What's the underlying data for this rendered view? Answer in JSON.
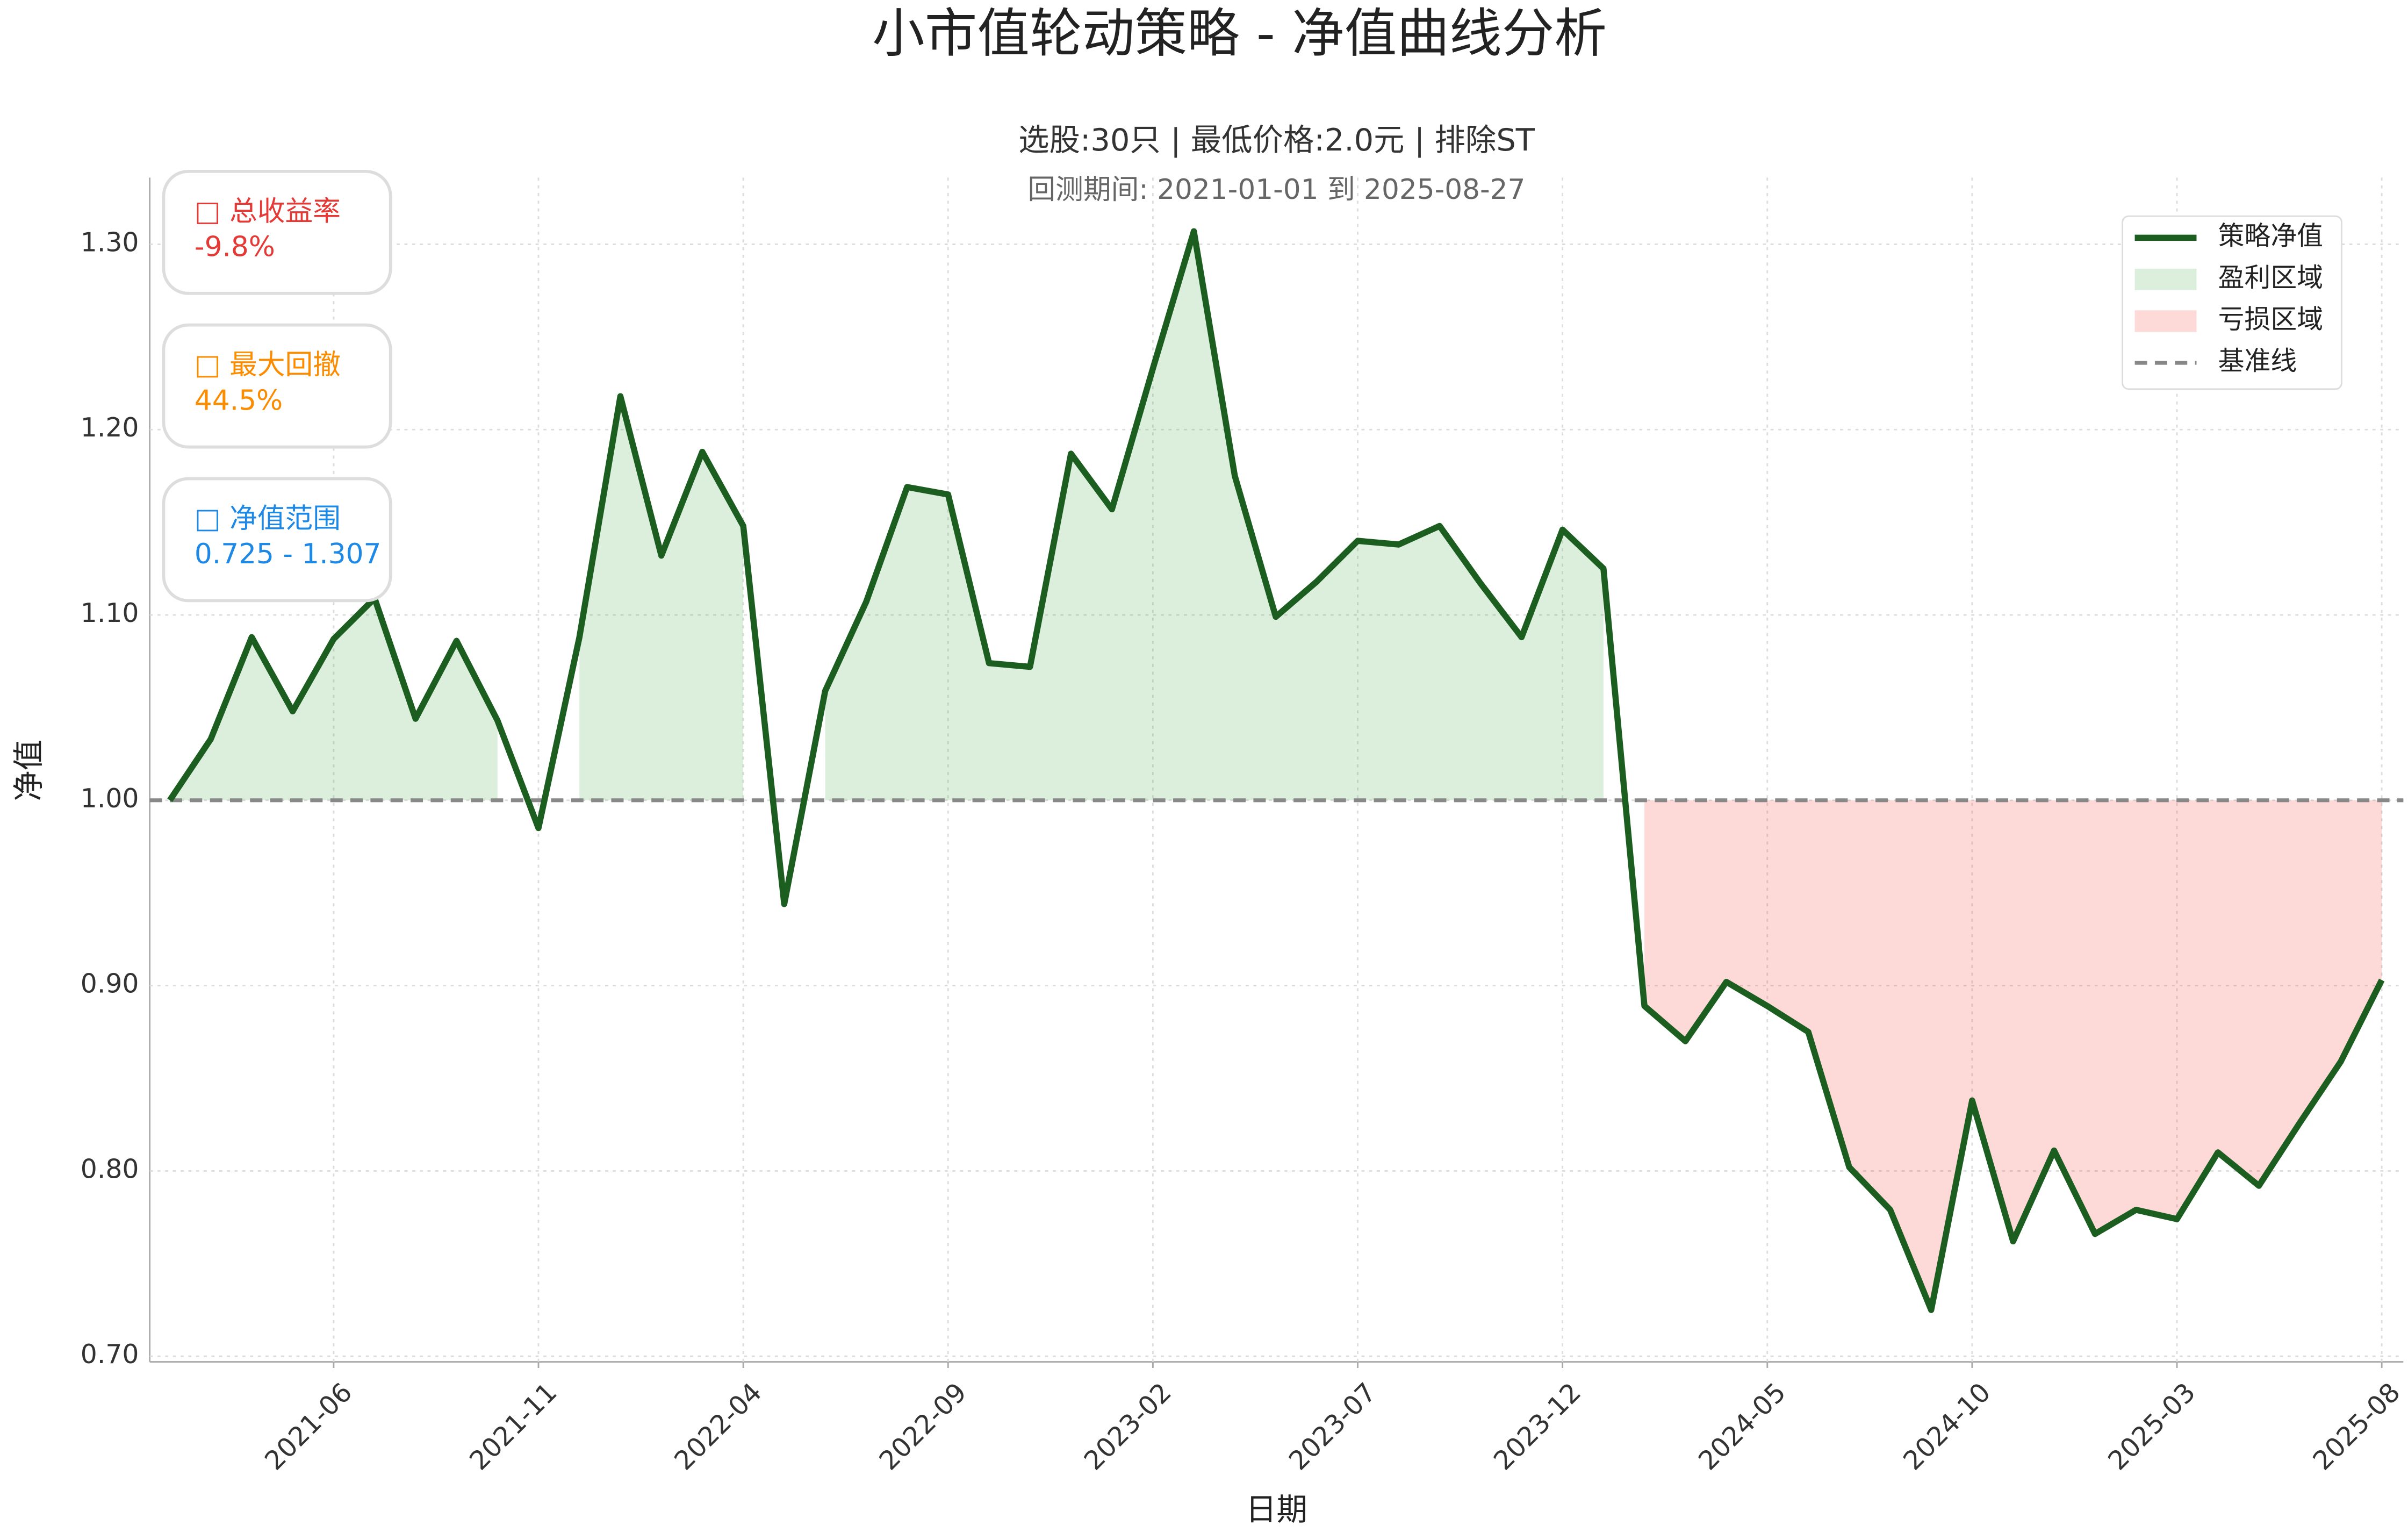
{
  "chart_data": {
    "type": "line",
    "title": "小市值轮动策略 - 净值曲线分析",
    "subtitle": "选股:30只 | 最低价格:2.0元 | 排除ST",
    "period": "回测期间: 2021-01-01 到 2025-08-27",
    "x_label": "日期",
    "y_label": "净值",
    "x": [
      "2021-02",
      "2021-03",
      "2021-04",
      "2021-05",
      "2021-06",
      "2021-07",
      "2021-08",
      "2021-09",
      "2021-10",
      "2021-11",
      "2021-12",
      "2022-01",
      "2022-02",
      "2022-03",
      "2022-04",
      "2022-05",
      "2022-06",
      "2022-07",
      "2022-08",
      "2022-09",
      "2022-10",
      "2022-11",
      "2022-12",
      "2023-01",
      "2023-02",
      "2023-03",
      "2023-04",
      "2023-05",
      "2023-06",
      "2023-07",
      "2023-08",
      "2023-09",
      "2023-10",
      "2023-11",
      "2023-12",
      "2024-01",
      "2024-02",
      "2024-03",
      "2024-04",
      "2024-05",
      "2024-06",
      "2024-07",
      "2024-08",
      "2024-09",
      "2024-10",
      "2024-11",
      "2024-12",
      "2025-01",
      "2025-02",
      "2025-03",
      "2025-04",
      "2025-05",
      "2025-06",
      "2025-07",
      "2025-08"
    ],
    "series": [
      {
        "name": "策略净值",
        "color": "#1b5e20",
        "values": [
          1.0,
          1.033,
          1.088,
          1.048,
          1.087,
          1.109,
          1.044,
          1.086,
          1.043,
          0.985,
          1.088,
          1.218,
          1.132,
          1.188,
          1.148,
          0.944,
          1.059,
          1.107,
          1.169,
          1.165,
          1.074,
          1.072,
          1.187,
          1.157,
          1.233,
          1.307,
          1.175,
          1.099,
          1.118,
          1.14,
          1.138,
          1.148,
          1.117,
          1.088,
          1.146,
          1.125,
          0.889,
          0.87,
          0.902,
          0.889,
          0.875,
          0.802,
          0.779,
          0.725,
          0.838,
          0.762,
          0.811,
          0.766,
          0.779,
          0.774,
          0.81,
          0.792,
          0.826,
          0.859,
          0.903
        ]
      }
    ],
    "profit_fill": {
      "name": "盈利区域",
      "color": "#4caf50"
    },
    "loss_fill": {
      "name": "亏损区域",
      "color": "#f44336"
    },
    "baseline": {
      "name": "基准线",
      "value": 1.0,
      "color": "#888888"
    },
    "xlim": [
      "2021-02",
      "2025-08"
    ],
    "xticks": [
      "2021-06",
      "2021-11",
      "2022-04",
      "2022-09",
      "2023-02",
      "2023-07",
      "2023-12",
      "2024-05",
      "2024-10",
      "2025-03",
      "2025-08"
    ],
    "ylim": [
      0.697,
      1.336
    ],
    "yticks": [
      {
        "value": 0.7,
        "label": "0.70"
      },
      {
        "value": 0.8,
        "label": "0.80"
      },
      {
        "value": 0.9,
        "label": "0.90"
      },
      {
        "value": 1.0,
        "label": "1.00"
      },
      {
        "value": 1.1,
        "label": "1.10"
      },
      {
        "value": 1.2,
        "label": "1.20"
      },
      {
        "value": 1.3,
        "label": "1.30"
      }
    ],
    "grid": true,
    "legend": "upper right",
    "stats": [
      {
        "label": "□ 总收益率",
        "value": "-9.8%",
        "color": "#e53935"
      },
      {
        "label": "□ 最大回撤",
        "value": "44.5%",
        "color": "#fb8c00"
      },
      {
        "label": "□ 净值范围",
        "value": "0.725 - 1.307",
        "color": "#1e88e5"
      }
    ]
  }
}
